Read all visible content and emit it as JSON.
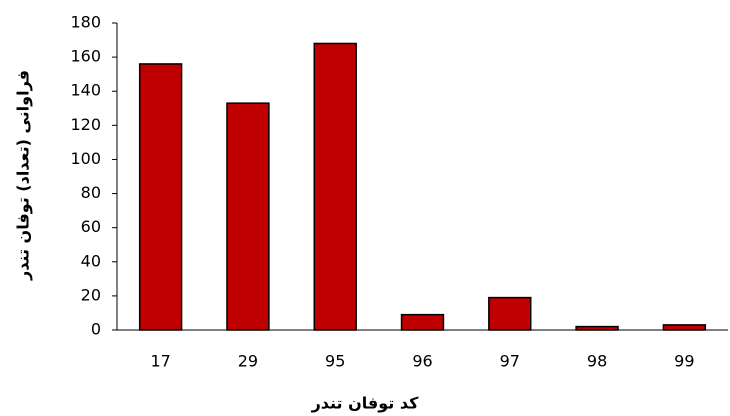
{
  "chart_data": {
    "type": "bar",
    "x_label": "کد توفان تندر",
    "y_label": "فراوانی (تعداد) توفان تندر",
    "categories": [
      "17",
      "29",
      "95",
      "96",
      "97",
      "98",
      "99"
    ],
    "values": [
      156,
      133,
      168,
      9,
      19,
      2,
      3
    ],
    "color": "#c00000",
    "ylim": [
      0,
      180
    ],
    "yticks": [
      0,
      20,
      40,
      60,
      80,
      100,
      120,
      140,
      160,
      180
    ],
    "grid": false
  }
}
